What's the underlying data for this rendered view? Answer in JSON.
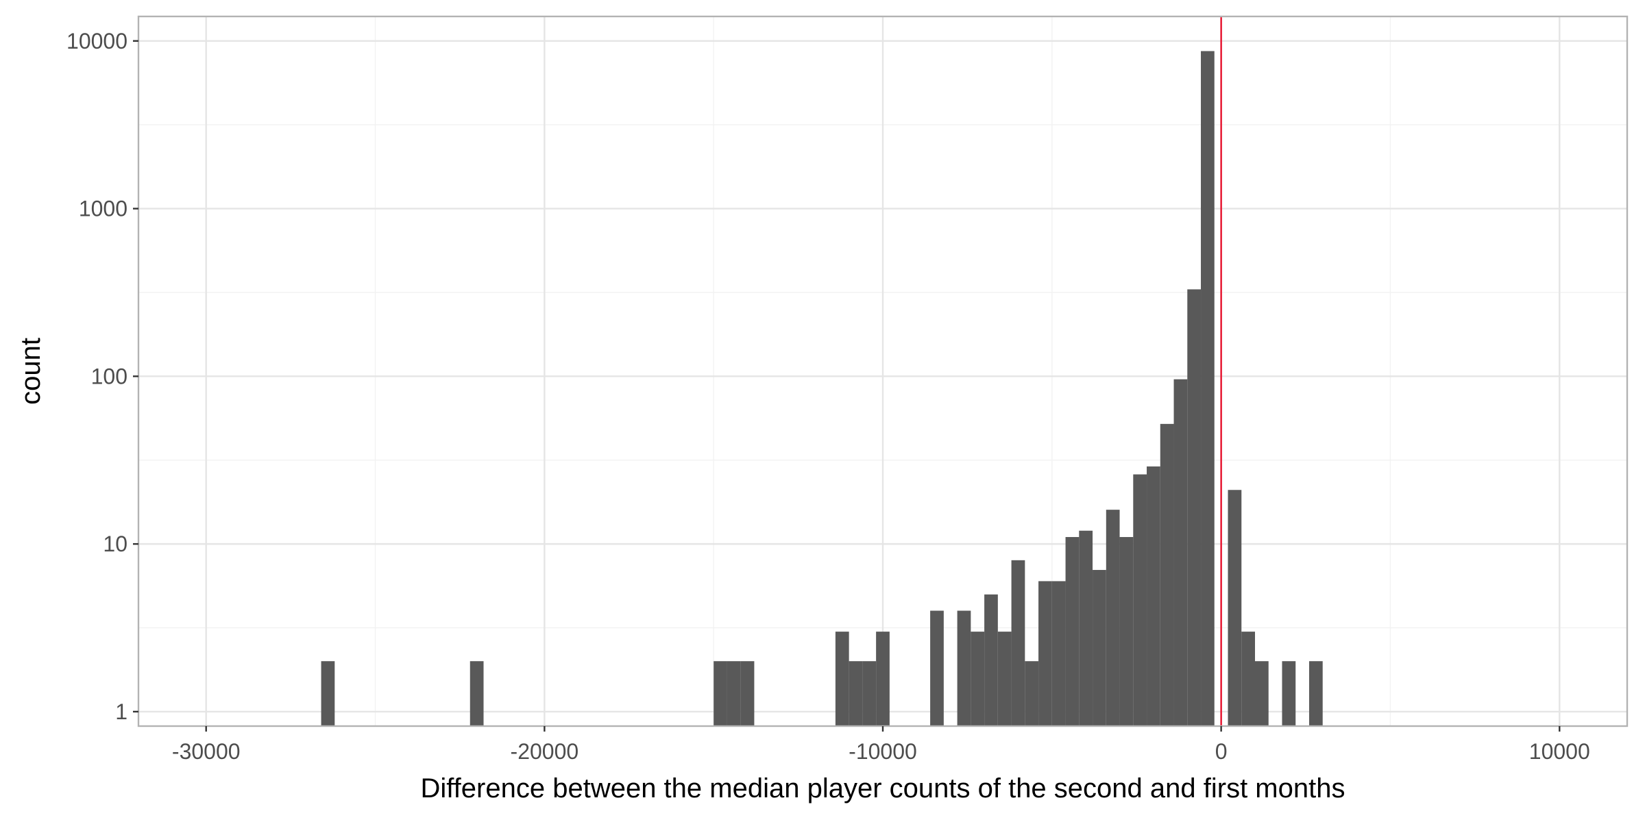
{
  "chart_data": {
    "type": "bar",
    "xlabel": "Difference between the median player counts of the second and first months",
    "ylabel": "count",
    "xlim": [
      -32000,
      12000
    ],
    "ylim": [
      0.82,
      14000
    ],
    "y_scale": "log10",
    "grid": true,
    "bin_width": 400,
    "x_ticks": [
      -30000,
      -20000,
      -10000,
      0,
      10000
    ],
    "x_tick_labels": [
      "-30000",
      "-20000",
      "-10000",
      "0",
      "10000"
    ],
    "y_ticks": [
      1,
      10,
      100,
      1000,
      10000
    ],
    "y_tick_labels": [
      "1",
      "10",
      "100",
      "1000",
      "10000"
    ],
    "reference_line": {
      "x": 0,
      "color": "#e8112d"
    },
    "colors": {
      "bar": "#595959",
      "grid_major": "#e5e5e5",
      "grid_minor": "#f2f2f2",
      "panel_border": "#b3b3b3"
    },
    "bins": [
      {
        "x": -26400,
        "count": 2
      },
      {
        "x": -22000,
        "count": 2
      },
      {
        "x": -14800,
        "count": 2
      },
      {
        "x": -14400,
        "count": 2
      },
      {
        "x": -14000,
        "count": 2
      },
      {
        "x": -11200,
        "count": 3
      },
      {
        "x": -10800,
        "count": 2
      },
      {
        "x": -10400,
        "count": 2
      },
      {
        "x": -10000,
        "count": 3
      },
      {
        "x": -8400,
        "count": 4
      },
      {
        "x": -7600,
        "count": 4
      },
      {
        "x": -7200,
        "count": 3
      },
      {
        "x": -6800,
        "count": 5
      },
      {
        "x": -6400,
        "count": 3
      },
      {
        "x": -6000,
        "count": 8
      },
      {
        "x": -5600,
        "count": 2
      },
      {
        "x": -5200,
        "count": 6
      },
      {
        "x": -4800,
        "count": 6
      },
      {
        "x": -4400,
        "count": 11
      },
      {
        "x": -4000,
        "count": 12
      },
      {
        "x": -3600,
        "count": 7
      },
      {
        "x": -3200,
        "count": 16
      },
      {
        "x": -2800,
        "count": 11
      },
      {
        "x": -2400,
        "count": 26
      },
      {
        "x": -2000,
        "count": 29
      },
      {
        "x": -1600,
        "count": 52
      },
      {
        "x": -1200,
        "count": 96
      },
      {
        "x": -800,
        "count": 330
      },
      {
        "x": -400,
        "count": 8700
      },
      {
        "x": 400,
        "count": 21
      },
      {
        "x": 800,
        "count": 3
      },
      {
        "x": 1200,
        "count": 2
      },
      {
        "x": 2000,
        "count": 2
      },
      {
        "x": 2800,
        "count": 2
      }
    ]
  }
}
